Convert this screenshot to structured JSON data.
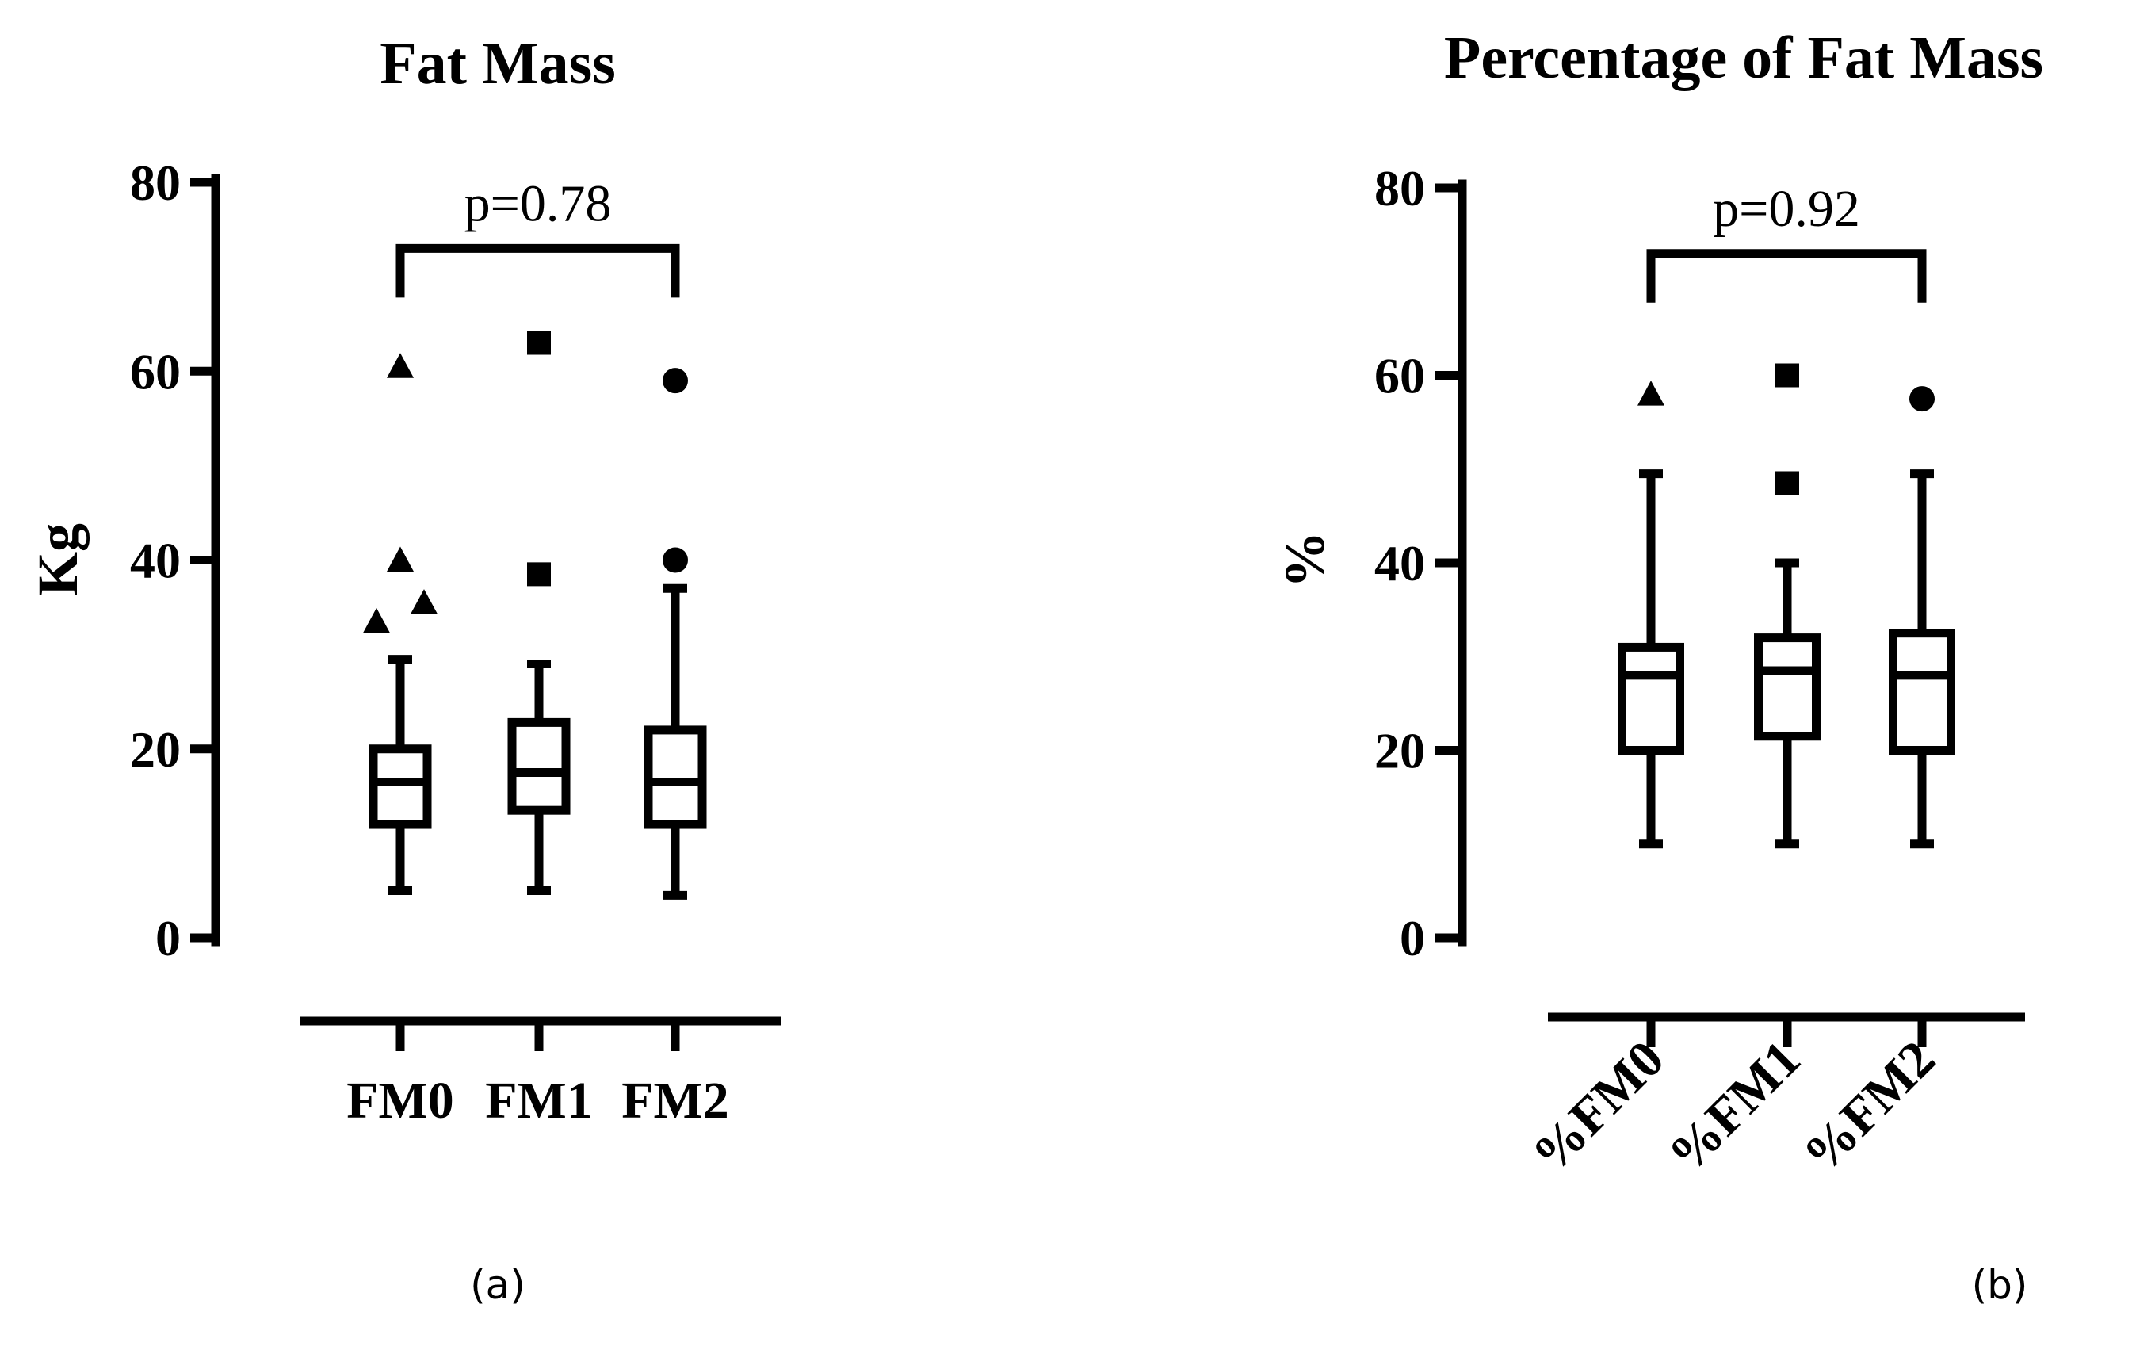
{
  "chart_data": [
    {
      "type": "box",
      "title": "Fat Mass",
      "ylabel": "Kg",
      "xlabel": "",
      "ylim": [
        0,
        80
      ],
      "yticks": [
        "0",
        "20",
        "40",
        "60",
        "80"
      ],
      "categories": [
        "FM0",
        "FM1",
        "FM2"
      ],
      "series": [
        {
          "name": "FM0",
          "marker": "triangle",
          "whisker_low": 5,
          "q1": 12,
          "median": 16.5,
          "q3": 20,
          "whisker_high": 29.5,
          "outliers": [
            33.5,
            35.5,
            40,
            60.5
          ]
        },
        {
          "name": "FM1",
          "marker": "square",
          "whisker_low": 5,
          "q1": 13.5,
          "median": 17.5,
          "q3": 22.8,
          "whisker_high": 29,
          "outliers": [
            38.5,
            63
          ]
        },
        {
          "name": "FM2",
          "marker": "circle",
          "whisker_low": 4.5,
          "q1": 12,
          "median": 16.5,
          "q3": 22,
          "whisker_high": 37,
          "outliers": [
            40,
            59
          ]
        }
      ],
      "annotation": {
        "text": "p=0.78",
        "from": "FM0",
        "to": "FM2",
        "level": 73
      },
      "panel_label": "(a)"
    },
    {
      "type": "box",
      "title": "Percentage of Fat Mass",
      "ylabel": "%",
      "xlabel": "",
      "ylim": [
        0,
        80
      ],
      "yticks": [
        "0",
        "20",
        "40",
        "60",
        "80"
      ],
      "categories": [
        "%FM0",
        "%FM1",
        "%FM2"
      ],
      "series": [
        {
          "name": "%FM0",
          "marker": "triangle",
          "whisker_low": 10,
          "q1": 20,
          "median": 28,
          "q3": 31,
          "whisker_high": 49.5,
          "outliers": [
            58
          ]
        },
        {
          "name": "%FM1",
          "marker": "square",
          "whisker_low": 10,
          "q1": 21.5,
          "median": 28.5,
          "q3": 32,
          "whisker_high": 40,
          "outliers": [
            48.5,
            60
          ]
        },
        {
          "name": "%FM2",
          "marker": "circle",
          "whisker_low": 10,
          "q1": 20,
          "median": 28,
          "q3": 32.5,
          "whisker_high": 49.5,
          "outliers": [
            57.5
          ]
        }
      ],
      "annotation": {
        "text": "p=0.92",
        "from": "%FM0",
        "to": "%FM2",
        "level": 73
      },
      "panel_label": "(b)"
    }
  ]
}
